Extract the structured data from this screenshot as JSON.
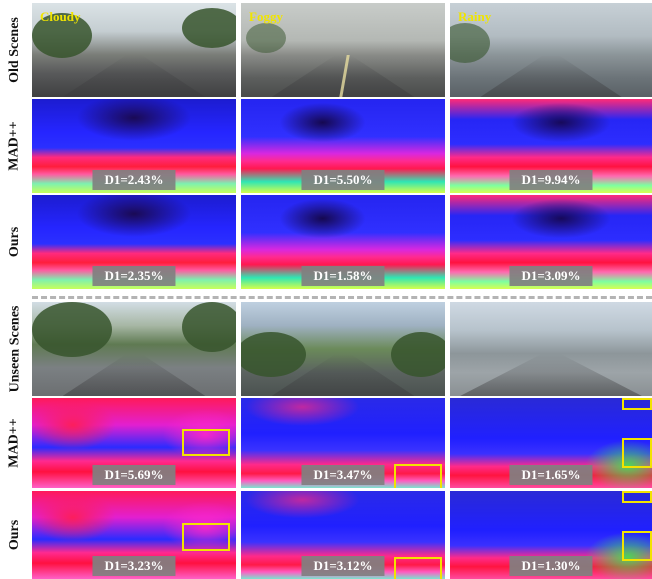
{
  "row_labels": [
    "Old Scenes",
    "MAD++",
    "Ours",
    "Unseen Scenes",
    "MAD++",
    "Ours"
  ],
  "weather_labels": [
    "Cloudy",
    "Foggy",
    "Rainy"
  ],
  "metrics": {
    "old_madpp": [
      "D1=2.43%",
      "D1=5.50%",
      "D1=9.94%"
    ],
    "old_ours": [
      "D1=2.35%",
      "D1=1.58%",
      "D1=3.09%"
    ],
    "unseen_madpp": [
      "D1=5.69%",
      "D1=3.47%",
      "D1=1.65%"
    ],
    "unseen_ours": [
      "D1=3.23%",
      "D1=3.12%",
      "D1=1.30%"
    ]
  },
  "colors": {
    "weather_text": "#f0e400",
    "highlight": "#f2e300",
    "label_bg": "#808080",
    "divider": "#b4b4b4"
  }
}
